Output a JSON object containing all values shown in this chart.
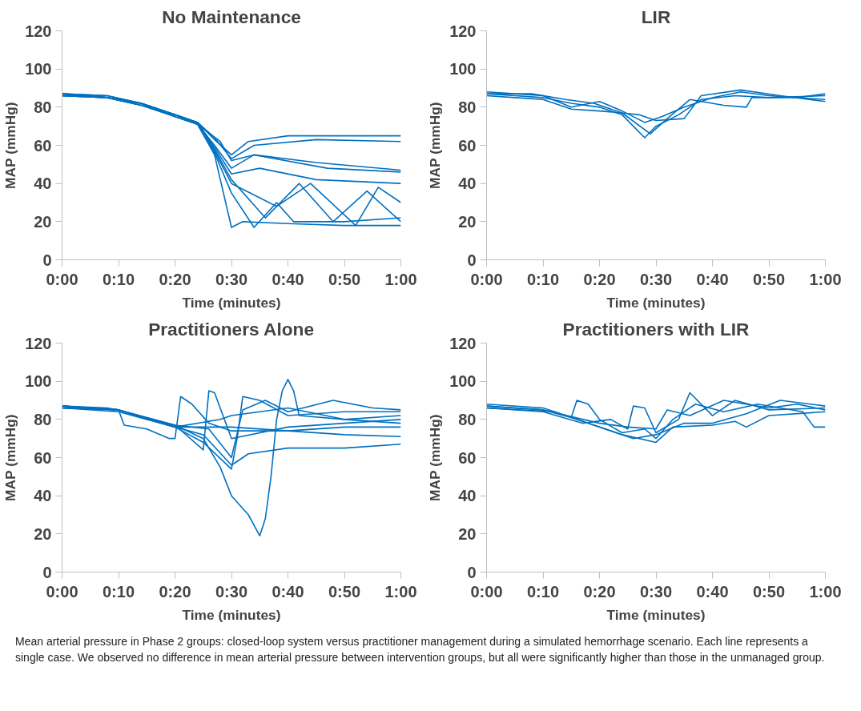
{
  "chart_data": [
    {
      "type": "line",
      "title": "No Maintenance",
      "xlabel": "Time (minutes)",
      "ylabel": "MAP (mmHg)",
      "xlim": [
        0,
        60
      ],
      "ylim": [
        0,
        120
      ],
      "yticks": [
        0,
        20,
        40,
        60,
        80,
        100,
        120
      ],
      "xticks": [
        {
          "value": 0,
          "label": "0:00"
        },
        {
          "value": 10,
          "label": "0:10"
        },
        {
          "value": 20,
          "label": "0:20"
        },
        {
          "value": 30,
          "label": "0:30"
        },
        {
          "value": 40,
          "label": "0:40"
        },
        {
          "value": 50,
          "label": "0:50"
        },
        {
          "value": 60,
          "label": "1:00"
        }
      ],
      "series": [
        {
          "color": "#0070c0",
          "x": [
            0,
            8,
            14,
            20,
            24,
            27,
            30,
            33,
            40,
            50,
            60
          ],
          "values": [
            87,
            85,
            82,
            76,
            72,
            63,
            55,
            62,
            65,
            65,
            65
          ]
        },
        {
          "color": "#0070c0",
          "x": [
            0,
            8,
            14,
            20,
            24,
            27,
            30,
            34,
            45,
            60
          ],
          "values": [
            86,
            85,
            81,
            76,
            72,
            64,
            53,
            60,
            63,
            62
          ]
        },
        {
          "color": "#0070c0",
          "x": [
            0,
            8,
            14,
            20,
            24,
            28,
            30,
            34,
            45,
            60
          ],
          "values": [
            87,
            86,
            82,
            75,
            71,
            62,
            52,
            55,
            51,
            47
          ]
        },
        {
          "color": "#0070c0",
          "x": [
            0,
            8,
            14,
            20,
            24,
            27,
            30,
            34,
            47,
            60
          ],
          "values": [
            86,
            85,
            81,
            76,
            71,
            60,
            48,
            55,
            48,
            46
          ]
        },
        {
          "color": "#0070c0",
          "x": [
            0,
            8,
            14,
            20,
            24,
            27,
            30,
            35,
            45,
            60
          ],
          "values": [
            87,
            85,
            82,
            76,
            72,
            59,
            45,
            48,
            42,
            40
          ]
        },
        {
          "color": "#0070c0",
          "x": [
            0,
            8,
            14,
            20,
            24,
            27,
            30,
            32,
            40,
            50,
            60
          ],
          "values": [
            86,
            85,
            82,
            76,
            71,
            55,
            17,
            20,
            19,
            18,
            18
          ]
        },
        {
          "color": "#0070c0",
          "x": [
            0,
            8,
            14,
            20,
            24,
            27,
            30,
            34,
            38,
            41,
            50,
            60
          ],
          "values": [
            87,
            85,
            81,
            75,
            71,
            56,
            35,
            17,
            30,
            20,
            20,
            22
          ]
        },
        {
          "color": "#0070c0",
          "x": [
            0,
            8,
            14,
            20,
            24,
            27,
            30,
            36,
            42,
            48,
            54,
            60
          ],
          "values": [
            86,
            85,
            82,
            76,
            72,
            58,
            42,
            22,
            40,
            20,
            36,
            20
          ]
        },
        {
          "color": "#0070c0",
          "x": [
            0,
            8,
            14,
            20,
            24,
            27,
            30,
            38,
            44,
            52,
            56,
            60
          ],
          "values": [
            87,
            86,
            82,
            76,
            72,
            57,
            40,
            28,
            40,
            18,
            38,
            30
          ]
        }
      ]
    },
    {
      "type": "line",
      "title": "LIR",
      "xlabel": "Time (minutes)",
      "ylabel": "MAP (mmHg)",
      "xlim": [
        0,
        60
      ],
      "ylim": [
        0,
        120
      ],
      "yticks": [
        0,
        20,
        40,
        60,
        80,
        100,
        120
      ],
      "xticks": [
        {
          "value": 0,
          "label": "0:00"
        },
        {
          "value": 10,
          "label": "0:10"
        },
        {
          "value": 20,
          "label": "0:20"
        },
        {
          "value": 30,
          "label": "0:30"
        },
        {
          "value": 40,
          "label": "0:40"
        },
        {
          "value": 50,
          "label": "0:50"
        },
        {
          "value": 60,
          "label": "1:00"
        }
      ],
      "series": [
        {
          "color": "#0070c0",
          "x": [
            0,
            5,
            10,
            15,
            20,
            24,
            28,
            30,
            34,
            38,
            44,
            50,
            60
          ],
          "values": [
            87,
            86,
            85,
            82,
            80,
            76,
            64,
            70,
            76,
            84,
            86,
            85,
            86
          ]
        },
        {
          "color": "#0070c0",
          "x": [
            0,
            5,
            10,
            15,
            20,
            24,
            28,
            31,
            35,
            40,
            45,
            50,
            60
          ],
          "values": [
            88,
            87,
            86,
            80,
            83,
            78,
            72,
            75,
            80,
            85,
            88,
            86,
            84
          ]
        },
        {
          "color": "#0070c0",
          "x": [
            0,
            5,
            10,
            15,
            20,
            24,
            29,
            32,
            36,
            42,
            46,
            47,
            55,
            60
          ],
          "values": [
            86,
            85,
            84,
            79,
            78,
            77,
            66,
            74,
            84,
            81,
            80,
            85,
            85,
            87
          ]
        },
        {
          "color": "#0070c0",
          "x": [
            0,
            8,
            14,
            19,
            24,
            27,
            30,
            35,
            38,
            45,
            52,
            60
          ],
          "values": [
            87,
            87,
            84,
            82,
            77,
            76,
            73,
            74,
            86,
            89,
            86,
            83
          ]
        }
      ]
    },
    {
      "type": "line",
      "title": "Practitioners Alone",
      "xlabel": "Time (minutes)",
      "ylabel": "MAP (mmHg)",
      "xlim": [
        0,
        60
      ],
      "ylim": [
        0,
        120
      ],
      "yticks": [
        0,
        20,
        40,
        60,
        80,
        100,
        120
      ],
      "xticks": [
        {
          "value": 0,
          "label": "0:00"
        },
        {
          "value": 10,
          "label": "0:10"
        },
        {
          "value": 20,
          "label": "0:20"
        },
        {
          "value": 30,
          "label": "0:30"
        },
        {
          "value": 40,
          "label": "0:40"
        },
        {
          "value": 50,
          "label": "0:50"
        },
        {
          "value": 60,
          "label": "1:00"
        }
      ],
      "series": [
        {
          "color": "#0070c0",
          "x": [
            0,
            8,
            10,
            15,
            20,
            25,
            28,
            30,
            33,
            35,
            36,
            37,
            38,
            39,
            40,
            41,
            42,
            50,
            60
          ],
          "values": [
            87,
            86,
            85,
            80,
            77,
            70,
            55,
            40,
            30,
            19,
            28,
            50,
            80,
            95,
            101,
            95,
            82,
            80,
            82
          ]
        },
        {
          "color": "#0070c0",
          "x": [
            0,
            10,
            11,
            15,
            19,
            20,
            21,
            23,
            26,
            30,
            40,
            50,
            60
          ],
          "values": [
            86,
            85,
            77,
            75,
            70,
            70,
            92,
            88,
            78,
            74,
            74,
            72,
            71
          ]
        },
        {
          "color": "#0070c0",
          "x": [
            0,
            10,
            20,
            25,
            26,
            27,
            30,
            40,
            50,
            60
          ],
          "values": [
            87,
            85,
            77,
            64,
            95,
            94,
            70,
            76,
            78,
            80
          ]
        },
        {
          "color": "#0070c0",
          "x": [
            0,
            10,
            20,
            25,
            30,
            31,
            32,
            35,
            40,
            50,
            60
          ],
          "values": [
            87,
            85,
            76,
            68,
            54,
            70,
            92,
            90,
            82,
            84,
            84
          ]
        },
        {
          "color": "#0070c0",
          "x": [
            0,
            10,
            20,
            25,
            30,
            33,
            40,
            50,
            60
          ],
          "values": [
            86,
            85,
            76,
            72,
            56,
            62,
            65,
            65,
            67
          ]
        },
        {
          "color": "#0070c0",
          "x": [
            0,
            10,
            20,
            26,
            30,
            32,
            36,
            40,
            48,
            55,
            60
          ],
          "values": [
            87,
            85,
            77,
            75,
            60,
            85,
            90,
            84,
            90,
            86,
            85
          ]
        },
        {
          "color": "#0070c0",
          "x": [
            0,
            10,
            20,
            30,
            40,
            50,
            60
          ],
          "values": [
            86,
            84,
            76,
            76,
            74,
            76,
            76
          ]
        },
        {
          "color": "#0070c0",
          "x": [
            0,
            10,
            20,
            28,
            30,
            40,
            50,
            60
          ],
          "values": [
            87,
            85,
            76,
            80,
            82,
            86,
            80,
            78
          ]
        }
      ]
    },
    {
      "type": "line",
      "title": "Practitioners with LIR",
      "xlabel": "Time (minutes)",
      "ylabel": "MAP (mmHg)",
      "xlim": [
        0,
        60
      ],
      "ylim": [
        0,
        120
      ],
      "yticks": [
        0,
        20,
        40,
        60,
        80,
        100,
        120
      ],
      "xticks": [
        {
          "value": 0,
          "label": "0:00"
        },
        {
          "value": 10,
          "label": "0:10"
        },
        {
          "value": 20,
          "label": "0:20"
        },
        {
          "value": 30,
          "label": "0:30"
        },
        {
          "value": 40,
          "label": "0:40"
        },
        {
          "value": 50,
          "label": "0:50"
        },
        {
          "value": 60,
          "label": "1:00"
        }
      ],
      "series": [
        {
          "color": "#0070c0",
          "x": [
            0,
            10,
            15,
            16,
            18,
            20,
            24,
            28,
            30,
            33,
            37,
            42,
            48,
            56,
            58,
            60
          ],
          "values": [
            87,
            85,
            81,
            90,
            88,
            80,
            73,
            75,
            70,
            80,
            88,
            84,
            88,
            84,
            76,
            76
          ]
        },
        {
          "color": "#0070c0",
          "x": [
            0,
            10,
            17,
            22,
            25,
            26,
            28,
            30,
            34,
            36,
            40,
            44,
            50,
            60
          ],
          "values": [
            86,
            84,
            78,
            80,
            75,
            87,
            86,
            73,
            80,
            94,
            82,
            90,
            85,
            86
          ]
        },
        {
          "color": "#0070c0",
          "x": [
            0,
            10,
            16,
            24,
            30,
            33,
            40,
            44,
            46,
            50,
            60
          ],
          "values": [
            88,
            86,
            80,
            72,
            68,
            76,
            77,
            79,
            76,
            82,
            84
          ]
        },
        {
          "color": "#0070c0",
          "x": [
            0,
            10,
            20,
            25,
            30,
            32,
            36,
            42,
            50,
            55,
            60
          ],
          "values": [
            87,
            85,
            78,
            76,
            75,
            85,
            82,
            90,
            86,
            88,
            85
          ]
        },
        {
          "color": "#0070c0",
          "x": [
            0,
            12,
            20,
            26,
            30,
            35,
            40,
            46,
            52,
            60
          ],
          "values": [
            86,
            84,
            76,
            70,
            72,
            78,
            78,
            83,
            90,
            87
          ]
        }
      ],
      "annotations": [
        "Mean arterial pressure in Phase 2 groups: closed-loop system versus practitioner management during a simulated hemorrhage scenario. Each line represents a single case. We observed no difference in mean arterial pressure between intervention groups, but all were significantly higher than those in the unmanaged group."
      ]
    }
  ]
}
